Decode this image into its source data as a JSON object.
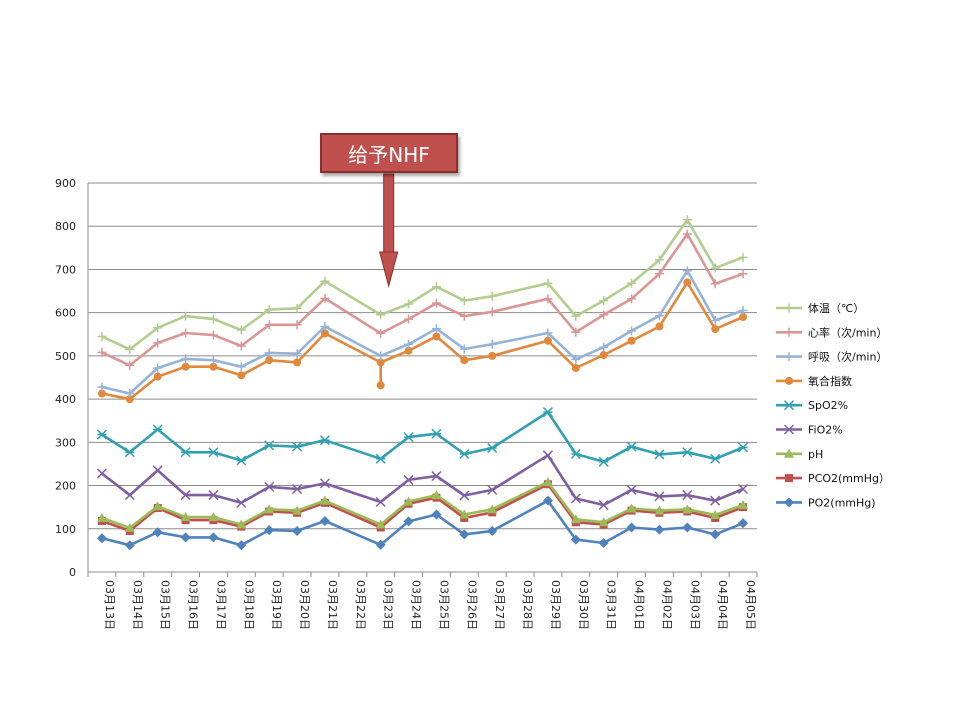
{
  "annotation": {
    "text": "给予NHF",
    "target_category": "03月23日",
    "color": "#c0504d"
  },
  "chart_data": {
    "type": "line",
    "title": "",
    "xlabel": "",
    "ylabel": "",
    "ylim": [
      0,
      900
    ],
    "yticks": [
      0,
      100,
      200,
      300,
      400,
      500,
      600,
      700,
      800,
      900
    ],
    "grid": true,
    "legend_position": "right",
    "categories": [
      "03月13日",
      "03月14日",
      "03月15日",
      "03月16日",
      "03月17日",
      "03月18日",
      "03月19日",
      "03月20日",
      "03月21日",
      "03月22日",
      "03月23日",
      "03月24日",
      "03月25日",
      "03月26日",
      "03月27日",
      "03月28日",
      "03月29日",
      "03月30日",
      "03月31日",
      "04月01日",
      "04月02日",
      "04月03日",
      "04月04日",
      "04月05日"
    ],
    "series": [
      {
        "name": "体温（℃）",
        "color": "#b3cd8e",
        "marker": "plus",
        "values": [
          545,
          515,
          565,
          592,
          585,
          560,
          607,
          610,
          673,
          null,
          595,
          620,
          660,
          628,
          638,
          null,
          668,
          592,
          628,
          668,
          722,
          815,
          703,
          728
        ]
      },
      {
        "name": "心率（次/min）",
        "color": "#d99694",
        "marker": "plus",
        "values": [
          508,
          478,
          530,
          553,
          548,
          523,
          572,
          572,
          633,
          null,
          552,
          585,
          622,
          592,
          602,
          null,
          632,
          555,
          595,
          632,
          690,
          782,
          667,
          690
        ]
      },
      {
        "name": "呼吸（次/min）",
        "color": "#95b3d7",
        "marker": "plus",
        "values": [
          428,
          413,
          472,
          493,
          490,
          475,
          507,
          505,
          568,
          null,
          500,
          527,
          563,
          516,
          527,
          null,
          553,
          492,
          520,
          558,
          593,
          697,
          582,
          605
        ]
      },
      {
        "name": "氧合指数",
        "color": "#e0883b",
        "marker": "circle",
        "values": [
          413,
          400,
          452,
          475,
          475,
          455,
          490,
          485,
          552,
          null,
          485,
          512,
          545,
          490,
          500,
          null,
          535,
          472,
          502,
          535,
          568,
          670,
          562,
          590
        ],
        "breaks": [
          {
            "index": 10,
            "value": 432
          }
        ]
      },
      {
        "name": "SpO2%",
        "color": "#31a0b0",
        "marker": "star",
        "values": [
          318,
          277,
          330,
          277,
          277,
          258,
          293,
          290,
          305,
          null,
          262,
          312,
          320,
          273,
          287,
          null,
          370,
          273,
          255,
          290,
          272,
          277,
          262,
          288
        ]
      },
      {
        "name": "FiO2%",
        "color": "#7f5fa0",
        "marker": "x",
        "values": [
          228,
          178,
          235,
          178,
          178,
          160,
          197,
          192,
          205,
          null,
          162,
          213,
          222,
          177,
          190,
          null,
          270,
          170,
          155,
          190,
          175,
          178,
          165,
          192
        ]
      },
      {
        "name": "pH",
        "color": "#9bbb59",
        "marker": "triangle",
        "values": [
          125,
          102,
          152,
          127,
          127,
          110,
          145,
          142,
          165,
          null,
          110,
          163,
          178,
          133,
          145,
          null,
          208,
          122,
          115,
          147,
          142,
          145,
          132,
          155
        ]
      },
      {
        "name": "PCO2(mmHg）",
        "color": "#c0504d",
        "marker": "square",
        "values": [
          118,
          95,
          148,
          120,
          120,
          105,
          140,
          137,
          160,
          null,
          103,
          158,
          172,
          125,
          138,
          null,
          203,
          115,
          110,
          142,
          137,
          140,
          125,
          150
        ]
      },
      {
        "name": "PO2(mmHg)",
        "color": "#4f81bd",
        "marker": "diamond",
        "values": [
          78,
          62,
          92,
          80,
          80,
          62,
          97,
          95,
          118,
          null,
          63,
          117,
          133,
          87,
          95,
          null,
          165,
          75,
          67,
          103,
          98,
          103,
          87,
          113
        ]
      }
    ]
  }
}
